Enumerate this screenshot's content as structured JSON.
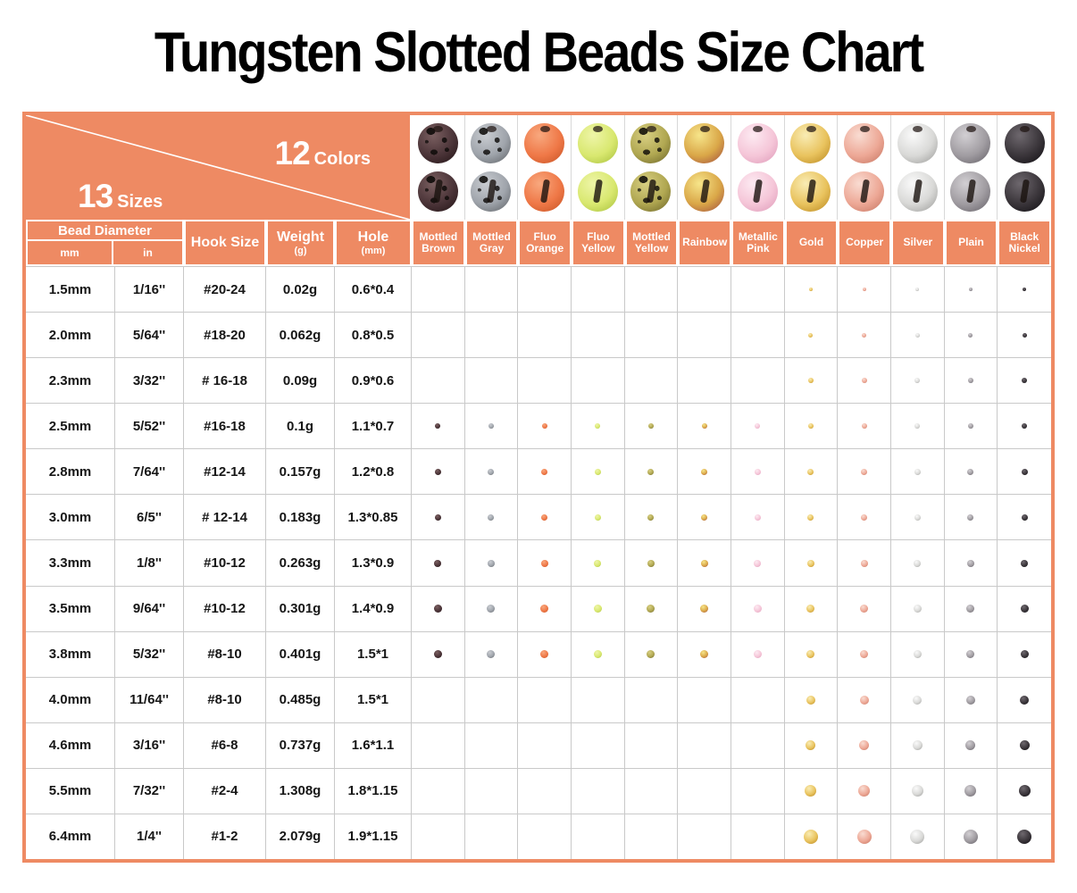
{
  "title": "Tungsten Slotted Beads Size Chart",
  "accent_color": "#EE8A63",
  "corner": {
    "sizes_count": "13",
    "sizes_word": "Sizes",
    "colors_count": "12",
    "colors_word": "Colors"
  },
  "headers": {
    "bead_diameter": "Bead Diameter",
    "mm": "mm",
    "in": "in",
    "hook_size": "Hook Size",
    "weight": "Weight",
    "weight_unit": "(g)",
    "hole": "Hole",
    "hole_unit": "(mm)"
  },
  "colors": [
    {
      "name": "Mottled Brown",
      "light": "#7a5f60",
      "main": "#4b3438",
      "dark": "#241517",
      "mottled": true
    },
    {
      "name": "Mottled Gray",
      "light": "#c9ccd1",
      "main": "#9fa4ab",
      "dark": "#606468",
      "mottled": true
    },
    {
      "name": "Fluo Orange",
      "light": "#f8a87e",
      "main": "#ef7847",
      "dark": "#c85526",
      "mottled": false
    },
    {
      "name": "Fluo Yellow",
      "light": "#eef5a8",
      "main": "#d9e870",
      "dark": "#aac23e",
      "mottled": false
    },
    {
      "name": "Mottled Yellow",
      "light": "#d8cf82",
      "main": "#b0a751",
      "dark": "#6e672a",
      "mottled": true
    },
    {
      "name": "Rainbow",
      "light": "#f6e58a",
      "main": "#daa748",
      "dark": "#a4523f",
      "mottled": false
    },
    {
      "name": "Metallic Pink",
      "light": "#fdeaf2",
      "main": "#f5c6d8",
      "dark": "#df9cba",
      "mottled": false
    },
    {
      "name": "Gold",
      "light": "#f9ecb4",
      "main": "#e9c35e",
      "dark": "#bb8a22",
      "mottled": false
    },
    {
      "name": "Copper",
      "light": "#f9dcd2",
      "main": "#eda896",
      "dark": "#c77763",
      "mottled": false
    },
    {
      "name": "Silver",
      "light": "#fafafa",
      "main": "#d9d9d7",
      "dark": "#9d9d9b",
      "mottled": false
    },
    {
      "name": "Plain",
      "light": "#d2cfd3",
      "main": "#a09ca1",
      "dark": "#67636a",
      "mottled": false
    },
    {
      "name": "Black Nickel",
      "light": "#6e686e",
      "main": "#3a353a",
      "dark": "#121014",
      "mottled": false
    }
  ],
  "chart_data": {
    "type": "table",
    "title": "Tungsten Slotted Beads Size Chart",
    "columns": [
      "Bead Diameter mm",
      "Bead Diameter in",
      "Hook Size",
      "Weight (g)",
      "Hole (mm)",
      "Mottled Brown",
      "Mottled Gray",
      "Fluo Orange",
      "Fluo Yellow",
      "Mottled Yellow",
      "Rainbow",
      "Metallic Pink",
      "Gold",
      "Copper",
      "Silver",
      "Plain",
      "Black Nickel"
    ],
    "rows": [
      {
        "mm": "1.5mm",
        "in": "1/16''",
        "hook": "#20-24",
        "weight": "0.02g",
        "hole": "0.6*0.4",
        "size_mm": 1.5,
        "available": "metals"
      },
      {
        "mm": "2.0mm",
        "in": "5/64''",
        "hook": "#18-20",
        "weight": "0.062g",
        "hole": "0.8*0.5",
        "size_mm": 2.0,
        "available": "metals"
      },
      {
        "mm": "2.3mm",
        "in": "3/32''",
        "hook": "# 16-18",
        "weight": "0.09g",
        "hole": "0.9*0.6",
        "size_mm": 2.3,
        "available": "metals"
      },
      {
        "mm": "2.5mm",
        "in": "5/52''",
        "hook": "#16-18",
        "weight": "0.1g",
        "hole": "1.1*0.7",
        "size_mm": 2.5,
        "available": "all"
      },
      {
        "mm": "2.8mm",
        "in": "7/64''",
        "hook": "#12-14",
        "weight": "0.157g",
        "hole": "1.2*0.8",
        "size_mm": 2.8,
        "available": "all"
      },
      {
        "mm": "3.0mm",
        "in": "6/5''",
        "hook": "# 12-14",
        "weight": "0.183g",
        "hole": "1.3*0.85",
        "size_mm": 3.0,
        "available": "all"
      },
      {
        "mm": "3.3mm",
        "in": "1/8''",
        "hook": "#10-12",
        "weight": "0.263g",
        "hole": "1.3*0.9",
        "size_mm": 3.3,
        "available": "all"
      },
      {
        "mm": "3.5mm",
        "in": "9/64''",
        "hook": "#10-12",
        "weight": "0.301g",
        "hole": "1.4*0.9",
        "size_mm": 3.5,
        "available": "all"
      },
      {
        "mm": "3.8mm",
        "in": "5/32''",
        "hook": "#8-10",
        "weight": "0.401g",
        "hole": "1.5*1",
        "size_mm": 3.8,
        "available": "all"
      },
      {
        "mm": "4.0mm",
        "in": "11/64''",
        "hook": "#8-10",
        "weight": "0.485g",
        "hole": "1.5*1",
        "size_mm": 4.0,
        "available": "metals"
      },
      {
        "mm": "4.6mm",
        "in": "3/16''",
        "hook": "#6-8",
        "weight": "0.737g",
        "hole": "1.6*1.1",
        "size_mm": 4.6,
        "available": "metals"
      },
      {
        "mm": "5.5mm",
        "in": "7/32''",
        "hook": "#2-4",
        "weight": "1.308g",
        "hole": "1.8*1.15",
        "size_mm": 5.5,
        "available": "metals"
      },
      {
        "mm": "6.4mm",
        "in": "1/4''",
        "hook": "#1-2",
        "weight": "2.079g",
        "hole": "1.9*1.15",
        "size_mm": 6.4,
        "available": "metals"
      }
    ],
    "metal_columns": [
      "Gold",
      "Copper",
      "Silver",
      "Plain",
      "Black Nickel"
    ]
  }
}
